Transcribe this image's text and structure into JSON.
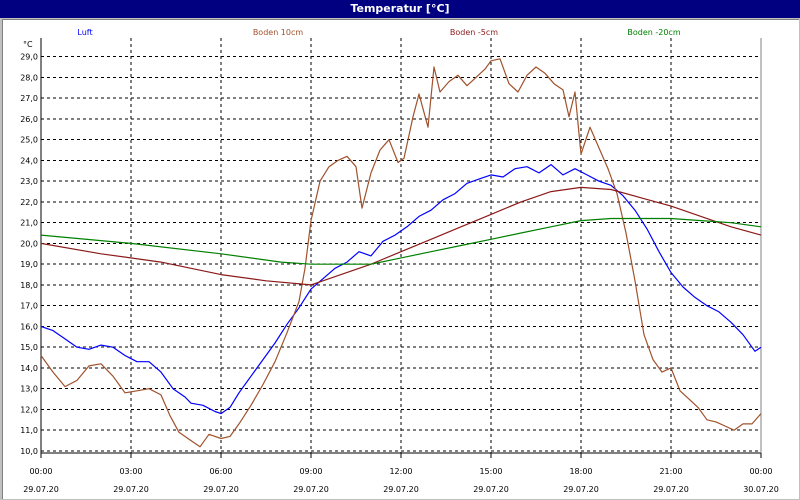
{
  "window": {
    "title": "Temperatur [°C]"
  },
  "chart_data": {
    "type": "line",
    "title": "Temperatur [°C]",
    "ylabel": "°C",
    "ylim": [
      9.9,
      29.9
    ],
    "y_ticks": [
      "10,0",
      "11,0",
      "12,0",
      "13,0",
      "14,0",
      "15,0",
      "16,0",
      "17,0",
      "18,0",
      "19,0",
      "20,0",
      "21,0",
      "22,0",
      "23,0",
      "24,0",
      "25,0",
      "26,0",
      "27,0",
      "28,0",
      "29,0"
    ],
    "xlim": [
      0,
      24
    ],
    "x_ticks": [
      {
        "x": 0,
        "time": "00:00",
        "date": "29.07.20"
      },
      {
        "x": 3,
        "time": "03:00",
        "date": "29.07.20"
      },
      {
        "x": 6,
        "time": "06:00",
        "date": "29.07.20"
      },
      {
        "x": 9,
        "time": "09:00",
        "date": "29.07.20"
      },
      {
        "x": 12,
        "time": "12:00",
        "date": "29.07.20"
      },
      {
        "x": 15,
        "time": "15:00",
        "date": "29.07.20"
      },
      {
        "x": 18,
        "time": "18:00",
        "date": "29.07.20"
      },
      {
        "x": 21,
        "time": "21:00",
        "date": "29.07.20"
      },
      {
        "x": 24,
        "time": "00:00",
        "date": "30.07.20"
      }
    ],
    "grid": true,
    "legend_position": "top",
    "series": [
      {
        "name": "Luft",
        "color": "#0000ff",
        "points": [
          [
            0,
            16.0
          ],
          [
            0.4,
            15.8
          ],
          [
            0.8,
            15.4
          ],
          [
            1.2,
            15.0
          ],
          [
            1.6,
            14.9
          ],
          [
            2.0,
            15.1
          ],
          [
            2.4,
            15.0
          ],
          [
            2.8,
            14.6
          ],
          [
            3.2,
            14.3
          ],
          [
            3.6,
            14.3
          ],
          [
            4.0,
            13.8
          ],
          [
            4.4,
            13.0
          ],
          [
            4.8,
            12.6
          ],
          [
            5.0,
            12.3
          ],
          [
            5.4,
            12.2
          ],
          [
            5.8,
            11.9
          ],
          [
            6.0,
            11.8
          ],
          [
            6.3,
            12.1
          ],
          [
            6.6,
            12.8
          ],
          [
            7.0,
            13.6
          ],
          [
            7.4,
            14.4
          ],
          [
            7.8,
            15.2
          ],
          [
            8.2,
            16.1
          ],
          [
            8.6,
            16.9
          ],
          [
            9.0,
            17.8
          ],
          [
            9.4,
            18.3
          ],
          [
            9.8,
            18.8
          ],
          [
            10.2,
            19.1
          ],
          [
            10.6,
            19.6
          ],
          [
            11.0,
            19.4
          ],
          [
            11.4,
            20.1
          ],
          [
            11.8,
            20.4
          ],
          [
            12.2,
            20.8
          ],
          [
            12.6,
            21.3
          ],
          [
            13.0,
            21.6
          ],
          [
            13.4,
            22.1
          ],
          [
            13.8,
            22.4
          ],
          [
            14.2,
            22.9
          ],
          [
            14.6,
            23.1
          ],
          [
            15.0,
            23.3
          ],
          [
            15.4,
            23.2
          ],
          [
            15.8,
            23.6
          ],
          [
            16.2,
            23.7
          ],
          [
            16.6,
            23.4
          ],
          [
            17.0,
            23.8
          ],
          [
            17.4,
            23.3
          ],
          [
            17.8,
            23.6
          ],
          [
            18.2,
            23.3
          ],
          [
            18.6,
            23.0
          ],
          [
            19.0,
            22.8
          ],
          [
            19.4,
            22.3
          ],
          [
            19.8,
            21.6
          ],
          [
            20.2,
            20.7
          ],
          [
            20.6,
            19.6
          ],
          [
            21.0,
            18.6
          ],
          [
            21.4,
            17.9
          ],
          [
            21.8,
            17.4
          ],
          [
            22.2,
            17.0
          ],
          [
            22.6,
            16.7
          ],
          [
            23.0,
            16.2
          ],
          [
            23.4,
            15.6
          ],
          [
            23.8,
            14.8
          ],
          [
            24.0,
            15.0
          ]
        ]
      },
      {
        "name": "Boden 10cm",
        "color": "#a0522d",
        "points": [
          [
            0,
            14.6
          ],
          [
            0.4,
            13.8
          ],
          [
            0.8,
            13.1
          ],
          [
            1.2,
            13.4
          ],
          [
            1.6,
            14.1
          ],
          [
            2.0,
            14.2
          ],
          [
            2.4,
            13.6
          ],
          [
            2.8,
            12.8
          ],
          [
            3.2,
            12.9
          ],
          [
            3.6,
            13.0
          ],
          [
            4.0,
            12.7
          ],
          [
            4.3,
            11.7
          ],
          [
            4.6,
            10.9
          ],
          [
            5.0,
            10.5
          ],
          [
            5.3,
            10.2
          ],
          [
            5.6,
            10.8
          ],
          [
            6.0,
            10.6
          ],
          [
            6.3,
            10.7
          ],
          [
            6.6,
            11.3
          ],
          [
            7.0,
            12.2
          ],
          [
            7.4,
            13.2
          ],
          [
            7.8,
            14.3
          ],
          [
            8.2,
            15.7
          ],
          [
            8.6,
            17.2
          ],
          [
            8.8,
            18.8
          ],
          [
            9.0,
            21.1
          ],
          [
            9.3,
            23.0
          ],
          [
            9.6,
            23.7
          ],
          [
            9.9,
            24.0
          ],
          [
            10.2,
            24.2
          ],
          [
            10.5,
            23.7
          ],
          [
            10.7,
            21.7
          ],
          [
            11.0,
            23.4
          ],
          [
            11.3,
            24.5
          ],
          [
            11.6,
            25.0
          ],
          [
            11.9,
            23.9
          ],
          [
            12.1,
            24.1
          ],
          [
            12.4,
            26.1
          ],
          [
            12.6,
            27.2
          ],
          [
            12.9,
            25.6
          ],
          [
            13.1,
            28.5
          ],
          [
            13.3,
            27.3
          ],
          [
            13.6,
            27.8
          ],
          [
            13.9,
            28.1
          ],
          [
            14.2,
            27.6
          ],
          [
            14.5,
            28.0
          ],
          [
            14.8,
            28.4
          ],
          [
            15.0,
            28.8
          ],
          [
            15.3,
            28.9
          ],
          [
            15.6,
            27.7
          ],
          [
            15.9,
            27.3
          ],
          [
            16.2,
            28.1
          ],
          [
            16.5,
            28.5
          ],
          [
            16.8,
            28.2
          ],
          [
            17.1,
            27.7
          ],
          [
            17.4,
            27.4
          ],
          [
            17.6,
            26.1
          ],
          [
            17.8,
            27.3
          ],
          [
            18.0,
            24.3
          ],
          [
            18.3,
            25.6
          ],
          [
            18.6,
            24.6
          ],
          [
            18.9,
            23.6
          ],
          [
            19.2,
            22.4
          ],
          [
            19.5,
            20.5
          ],
          [
            19.8,
            18.2
          ],
          [
            20.1,
            15.6
          ],
          [
            20.4,
            14.4
          ],
          [
            20.7,
            13.8
          ],
          [
            21.0,
            14.0
          ],
          [
            21.3,
            12.9
          ],
          [
            21.6,
            12.5
          ],
          [
            21.9,
            12.1
          ],
          [
            22.2,
            11.5
          ],
          [
            22.5,
            11.4
          ],
          [
            22.8,
            11.2
          ],
          [
            23.1,
            11.0
          ],
          [
            23.4,
            11.3
          ],
          [
            23.7,
            11.3
          ],
          [
            24.0,
            11.8
          ]
        ]
      },
      {
        "name": "Boden -5cm",
        "color": "#8b1a1a",
        "points": [
          [
            0,
            20.0
          ],
          [
            2,
            19.5
          ],
          [
            4,
            19.1
          ],
          [
            6,
            18.5
          ],
          [
            7.5,
            18.2
          ],
          [
            9,
            18.0
          ],
          [
            10,
            18.5
          ],
          [
            11,
            19.0
          ],
          [
            12,
            19.6
          ],
          [
            13,
            20.2
          ],
          [
            14,
            20.8
          ],
          [
            15,
            21.4
          ],
          [
            16,
            22.0
          ],
          [
            17,
            22.5
          ],
          [
            18,
            22.7
          ],
          [
            19,
            22.6
          ],
          [
            20,
            22.2
          ],
          [
            21,
            21.8
          ],
          [
            22,
            21.3
          ],
          [
            23,
            20.8
          ],
          [
            24,
            20.4
          ]
        ]
      },
      {
        "name": "Boden -20cm",
        "color": "#008000",
        "points": [
          [
            0,
            20.4
          ],
          [
            3,
            20.0
          ],
          [
            6,
            19.5
          ],
          [
            8,
            19.1
          ],
          [
            9,
            19.0
          ],
          [
            11,
            19.0
          ],
          [
            12,
            19.3
          ],
          [
            13,
            19.6
          ],
          [
            14,
            19.9
          ],
          [
            15,
            20.2
          ],
          [
            16,
            20.5
          ],
          [
            17,
            20.8
          ],
          [
            18,
            21.1
          ],
          [
            19,
            21.2
          ],
          [
            20,
            21.2
          ],
          [
            21,
            21.2
          ],
          [
            22,
            21.1
          ],
          [
            23,
            21.0
          ],
          [
            24,
            20.8
          ]
        ]
      }
    ]
  }
}
